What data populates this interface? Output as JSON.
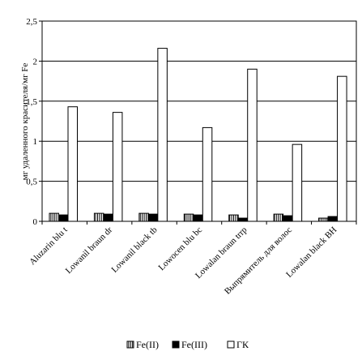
{
  "chart_data": {
    "type": "bar",
    "title": "",
    "xlabel": "",
    "ylabel": "мг удаленного красителя/мг Fe",
    "ylim": [
      0,
      2.5
    ],
    "y_ticks": [
      0,
      0.5,
      1,
      1.5,
      2,
      2.5
    ],
    "y_tick_labels": [
      "0",
      "0,5",
      "1",
      "1,5",
      "2",
      "2,5"
    ],
    "grid": true,
    "legend_position": "bottom",
    "categories": [
      "Aluzarin blu t",
      "Lowanil braun dr",
      "Lowanil black tb",
      "Lowocen blu bc",
      "Lowalan braun trrp",
      "Выпрямитель для волос",
      "Lowalan black BH"
    ],
    "series": [
      {
        "name": "Fe(II)",
        "pattern": "vertical-stripes",
        "color": "#ffffff",
        "values": [
          0.1,
          0.1,
          0.1,
          0.09,
          0.08,
          0.09,
          0.04
        ]
      },
      {
        "name": "Fe(III)",
        "pattern": "solid",
        "color": "#000000",
        "values": [
          0.08,
          0.09,
          0.09,
          0.08,
          0.04,
          0.07,
          0.06
        ]
      },
      {
        "name": "ГК",
        "pattern": "solid",
        "color": "#ffffff",
        "values": [
          1.43,
          1.36,
          2.16,
          1.17,
          1.9,
          0.96,
          1.81
        ]
      }
    ]
  }
}
